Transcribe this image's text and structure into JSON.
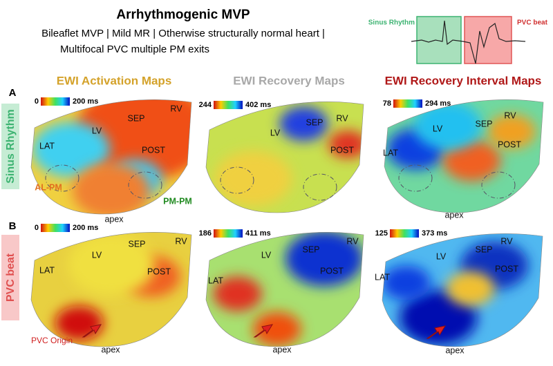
{
  "header": {
    "title": "Arrhythmogenic MVP",
    "lines": [
      "Bileaflet MVP | Mild MR | Otherwise structurally normal heart |",
      "Multifocal PVC multiple PM exits"
    ]
  },
  "ecg": {
    "sinus_label": "Sinus Rhythm",
    "pvc_label": "PVC beat"
  },
  "columns": [
    "EWI Activation Maps",
    "EWI Recovery Maps",
    "EWI Recovery Interval Maps"
  ],
  "rows": [
    {
      "letter": "A",
      "label": "Sinus Rhythm"
    },
    {
      "letter": "B",
      "label": "PVC beat"
    }
  ],
  "panels": [
    {
      "colorbar": {
        "min": "0",
        "max": "200 ms"
      },
      "labels": [
        "LV",
        "SEP",
        "RV",
        "LAT",
        "POST",
        "AL-PM",
        "PM-PM",
        "apex"
      ]
    },
    {
      "colorbar": {
        "min": "244",
        "max": "402 ms"
      },
      "labels": [
        "LV",
        "SEP",
        "RV",
        "POST"
      ]
    },
    {
      "colorbar": {
        "min": "78",
        "max": "294 ms"
      },
      "labels": [
        "LV",
        "SEP",
        "RV",
        "LAT",
        "POST",
        "apex"
      ]
    },
    {
      "colorbar": {
        "min": "0",
        "max": "200 ms"
      },
      "labels": [
        "LV",
        "SEP",
        "RV",
        "LAT",
        "POST",
        "apex",
        "PVC Origin"
      ]
    },
    {
      "colorbar": {
        "min": "186",
        "max": "411 ms"
      },
      "labels": [
        "LV",
        "SEP",
        "RV",
        "LAT",
        "POST",
        "apex"
      ]
    },
    {
      "colorbar": {
        "min": "125",
        "max": "373 ms"
      },
      "labels": [
        "LV",
        "SEP",
        "RV",
        "LAT",
        "POST",
        "apex"
      ]
    }
  ]
}
